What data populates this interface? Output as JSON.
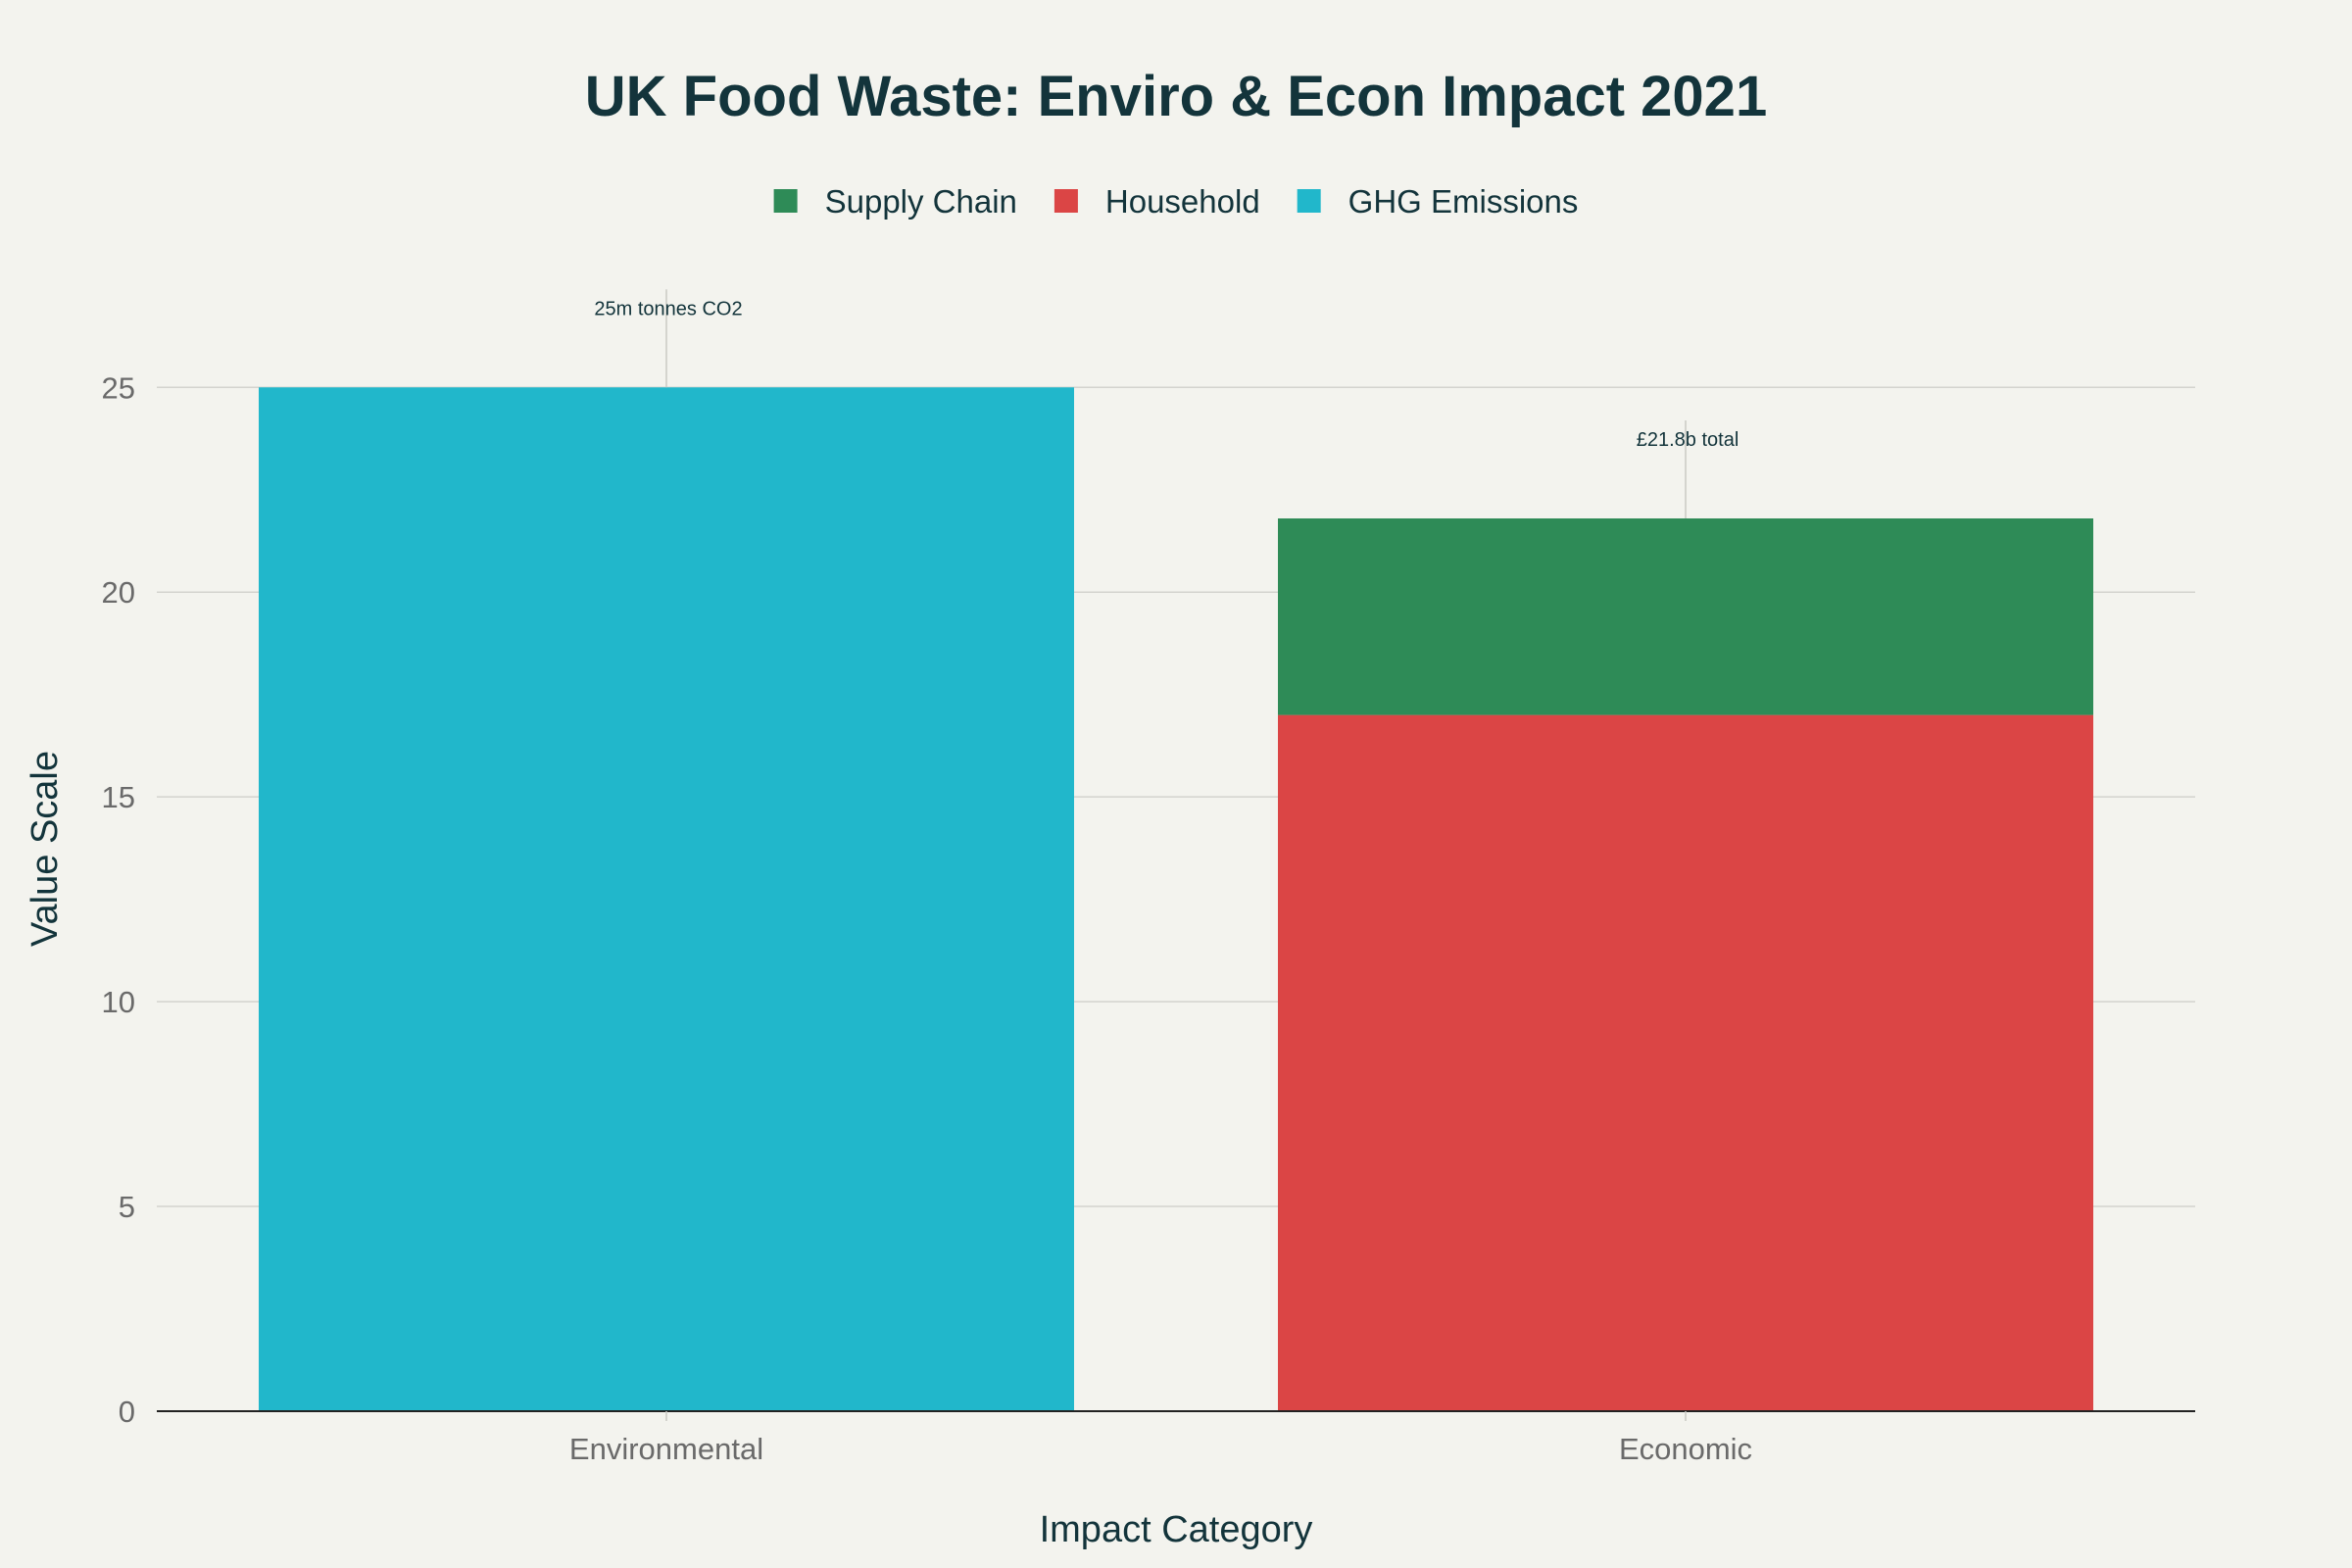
{
  "chart_data": {
    "type": "bar",
    "stacked": true,
    "title": "UK Food Waste: Enviro & Econ Impact 2021",
    "xlabel": "Impact Category",
    "ylabel": "Value Scale",
    "categories": [
      "Environmental",
      "Economic"
    ],
    "ylim": [
      0,
      27.4
    ],
    "yticks": [
      0,
      5,
      10,
      15,
      20,
      25
    ],
    "grid": true,
    "legend_position": "top-center",
    "series": [
      {
        "name": "Household",
        "color": "#db4545",
        "values": [
          0,
          17.0
        ]
      },
      {
        "name": "Supply Chain",
        "color": "#2e8b57",
        "values": [
          0,
          4.8
        ]
      },
      {
        "name": "GHG Emissions",
        "color": "#21b7cb",
        "values": [
          25,
          0
        ]
      }
    ],
    "legend": [
      "Supply Chain",
      "Household",
      "GHG Emissions"
    ],
    "annotations": [
      {
        "category": "Environmental",
        "y": 25,
        "text": "25m tonnes CO2"
      },
      {
        "category": "Economic",
        "y": 21.8,
        "text": "£21.8b total"
      }
    ]
  }
}
